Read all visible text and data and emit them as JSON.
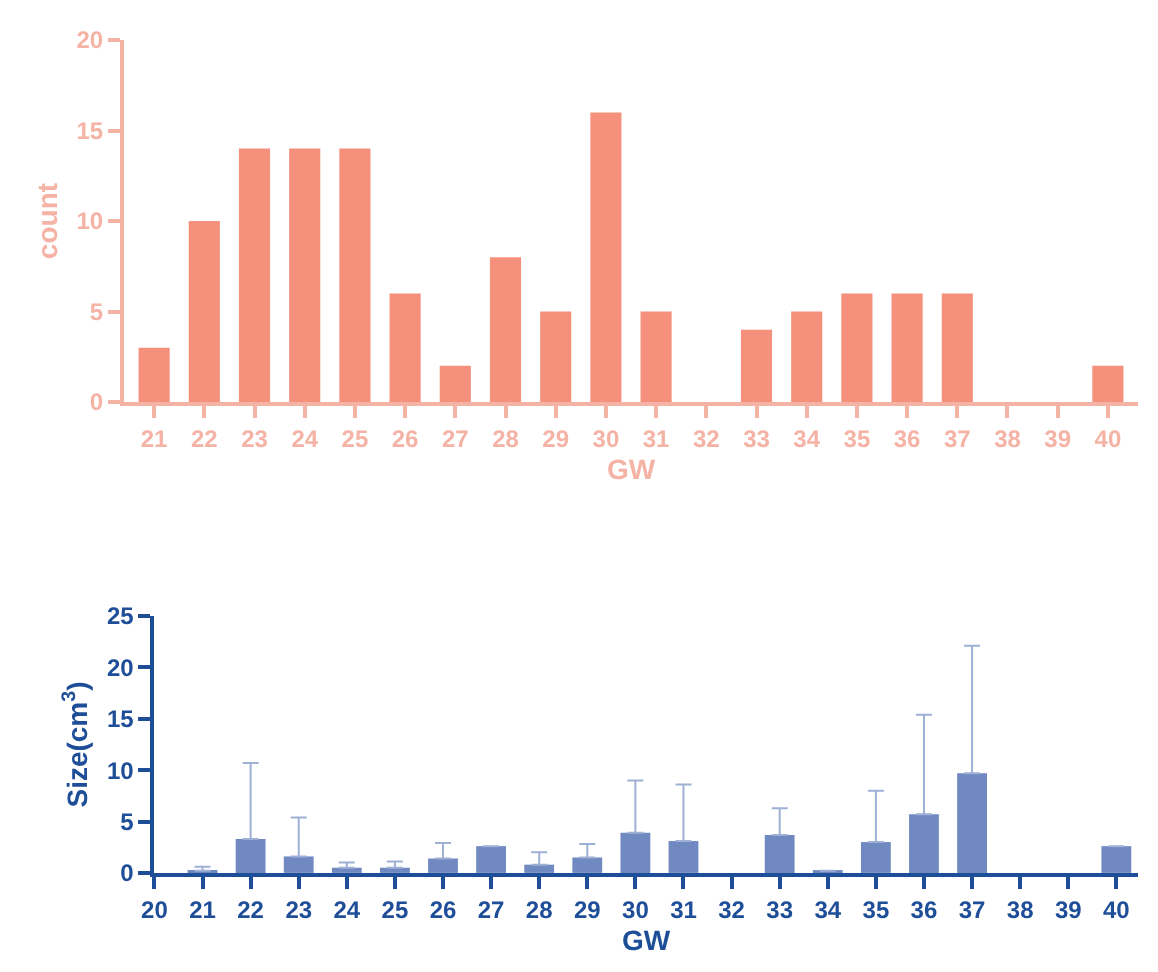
{
  "chart_data": [
    {
      "type": "bar",
      "xlabel": "GW",
      "ylabel": "count",
      "categories": [
        "21",
        "22",
        "23",
        "24",
        "25",
        "26",
        "27",
        "28",
        "29",
        "30",
        "31",
        "32",
        "33",
        "34",
        "35",
        "36",
        "37",
        "38",
        "39",
        "40"
      ],
      "values": [
        3,
        10,
        14,
        14,
        14,
        6,
        2,
        8,
        5,
        16,
        5,
        0,
        4,
        5,
        6,
        6,
        6,
        0,
        0,
        2
      ],
      "color": "#f4907c",
      "ylim": [
        0,
        20
      ],
      "yticks": [
        0,
        5,
        10,
        15,
        20
      ]
    },
    {
      "type": "bar",
      "xlabel": "GW",
      "ylabel": "Size(cm$^{3}$)",
      "x": [
        21,
        22,
        23,
        24,
        25,
        26,
        27,
        28,
        29,
        30,
        31,
        32,
        33,
        34,
        35,
        36,
        37,
        38,
        39,
        40
      ],
      "values": [
        0.2,
        3.3,
        1.6,
        0.5,
        0.5,
        1.4,
        2.6,
        0.8,
        1.5,
        3.9,
        3.1,
        null,
        3.7,
        0.2,
        3.0,
        5.7,
        9.7,
        null,
        null,
        2.6
      ],
      "errors": [
        [
          0.2,
          0.6
        ],
        [
          3.3,
          10.7
        ],
        [
          1.6,
          5.4
        ],
        [
          0.5,
          1.0
        ],
        [
          0.5,
          1.1
        ],
        [
          1.4,
          2.9
        ],
        null,
        [
          0.8,
          2.0
        ],
        [
          1.5,
          2.8
        ],
        [
          3.9,
          9.0
        ],
        [
          3.1,
          8.6
        ],
        null,
        [
          3.7,
          6.3
        ],
        null,
        [
          3.0,
          8.0
        ],
        [
          5.7,
          15.4
        ],
        [
          9.7,
          22.1
        ],
        null,
        null,
        null
      ],
      "color": "#7089c0",
      "xlim": [
        20,
        40.45
      ],
      "xticks": [
        20,
        21,
        22,
        23,
        24,
        25,
        26,
        27,
        28,
        29,
        30,
        31,
        32,
        33,
        34,
        35,
        36,
        37,
        38,
        39,
        40
      ],
      "ylim": [
        0,
        25
      ],
      "yticks": [
        0,
        5,
        10,
        15,
        20,
        25
      ]
    }
  ]
}
